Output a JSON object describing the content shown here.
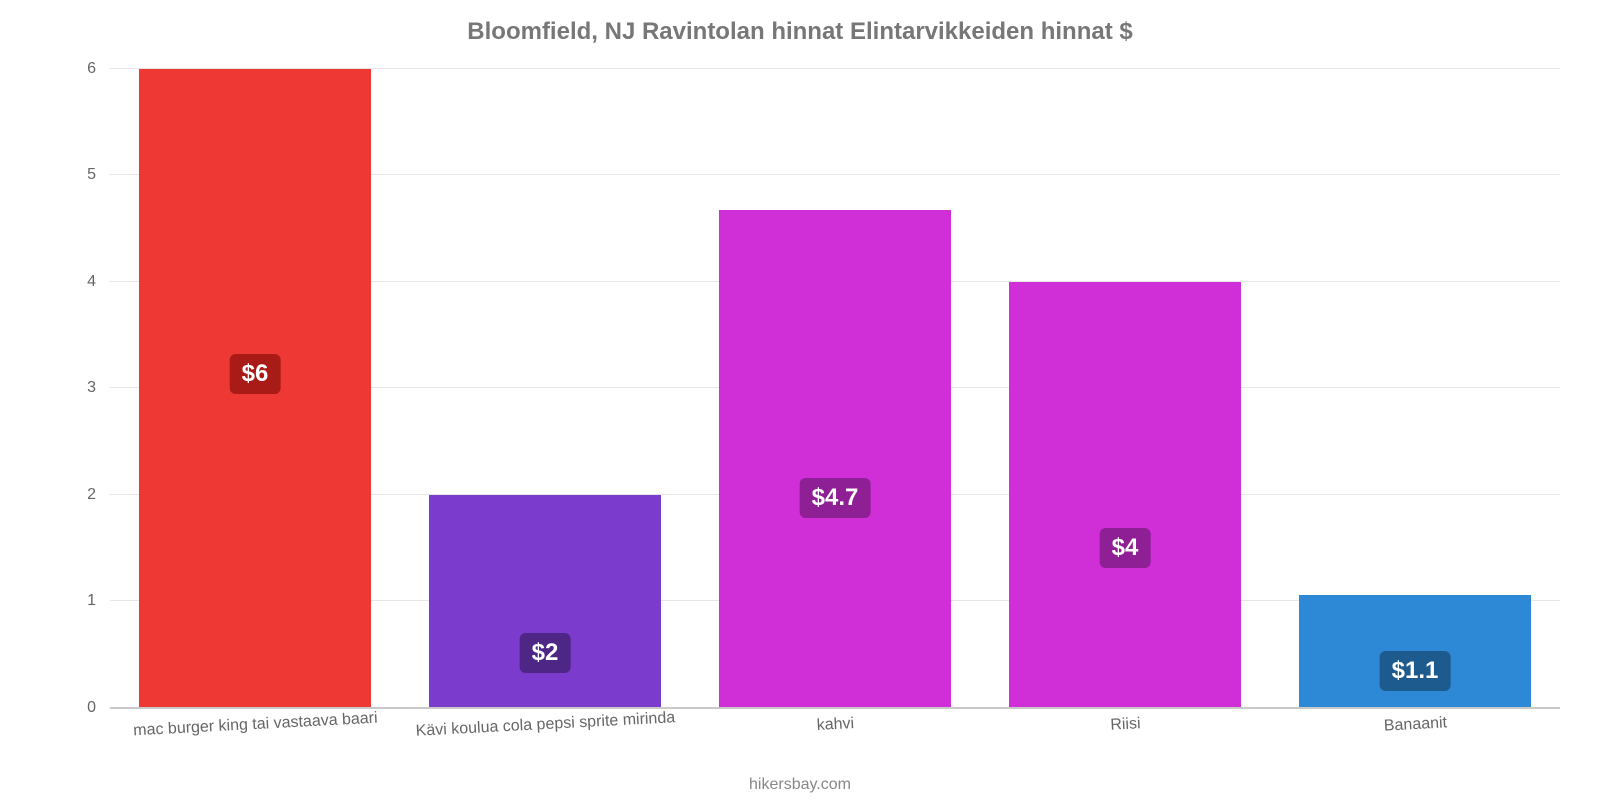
{
  "chart": {
    "type": "bar",
    "title": "Bloomfield, NJ Ravintolan hinnat Elintarvikkeiden hinnat $",
    "title_color": "#777777",
    "title_fontsize": 24,
    "attribution": "hikersbay.com",
    "attribution_color": "#888888",
    "background_color": "#ffffff",
    "grid_color": "#e6e6e6",
    "baseline_color": "#c9c9c9",
    "y": {
      "min": 0,
      "max": 6.1,
      "ticks": [
        0,
        1,
        2,
        3,
        4,
        5,
        6
      ],
      "tick_color": "#666666",
      "tick_fontsize": 16
    },
    "bar_width_pct": 16,
    "value_label_fontsize": 24,
    "x_label_fontsize": 16,
    "x_label_color": "#666666",
    "bars": [
      {
        "category": "mac burger king tai vastaava baari",
        "value": 6,
        "display": "$6",
        "fill": "#ed3833",
        "label_bg": "#a81b17"
      },
      {
        "category": "Kävi koulua cola pepsi sprite mirinda",
        "value": 2,
        "display": "$2",
        "fill": "#7b3cce",
        "label_bg": "#4e2685"
      },
      {
        "category": "kahvi",
        "value": 4.67,
        "display": "$4.7",
        "fill": "#d02fd8",
        "label_bg": "#8e1f94"
      },
      {
        "category": "Riisi",
        "value": 4,
        "display": "$4",
        "fill": "#d02fd8",
        "label_bg": "#8e1f94"
      },
      {
        "category": "Banaanit",
        "value": 1.06,
        "display": "$1.1",
        "fill": "#2d88d6",
        "label_bg": "#1d5a8e"
      }
    ]
  }
}
